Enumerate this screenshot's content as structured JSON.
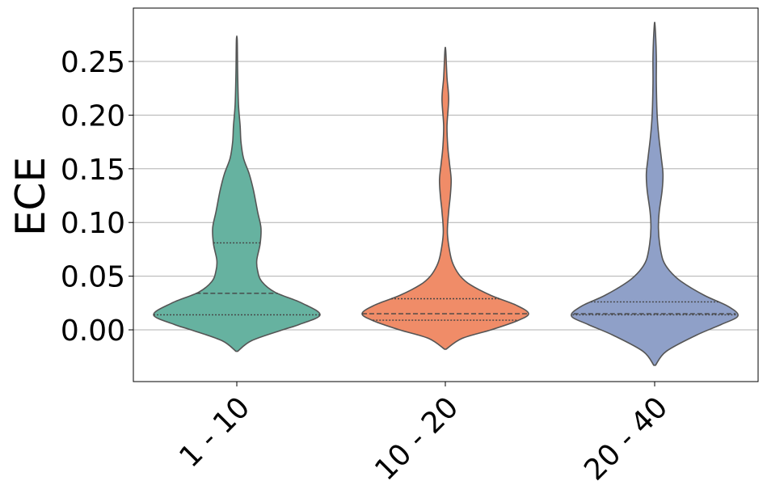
{
  "chart_data": {
    "type": "violin",
    "title": "",
    "xlabel": "",
    "ylabel": "ECE",
    "ylim": [
      -0.05,
      0.3
    ],
    "grid": "horizontal",
    "yticks": [
      "0.00",
      "0.05",
      "0.10",
      "0.15",
      "0.20",
      "0.25"
    ],
    "ytick_values": [
      0.0,
      0.05,
      0.1,
      0.15,
      0.2,
      0.25
    ],
    "categories": [
      "1 - 10",
      "10 - 20",
      "20 - 40"
    ],
    "series": [
      {
        "category": "1 - 10",
        "color": "#66b2a0",
        "min": -0.02,
        "max": 0.27,
        "q1": 0.014,
        "median": 0.034,
        "q3": 0.081,
        "density": [
          [
            -0.02,
            0.01
          ],
          [
            -0.01,
            0.18
          ],
          [
            0.0,
            0.55
          ],
          [
            0.005,
            0.75
          ],
          [
            0.014,
            1.0
          ],
          [
            0.025,
            0.78
          ],
          [
            0.035,
            0.46
          ],
          [
            0.045,
            0.3
          ],
          [
            0.055,
            0.25
          ],
          [
            0.065,
            0.24
          ],
          [
            0.08,
            0.28
          ],
          [
            0.095,
            0.29
          ],
          [
            0.11,
            0.25
          ],
          [
            0.13,
            0.2
          ],
          [
            0.145,
            0.15
          ],
          [
            0.16,
            0.08
          ],
          [
            0.175,
            0.05
          ],
          [
            0.19,
            0.04
          ],
          [
            0.21,
            0.02
          ],
          [
            0.24,
            0.01
          ],
          [
            0.27,
            0.005
          ]
        ]
      },
      {
        "category": "10 - 20",
        "color": "#f08c68",
        "min": -0.018,
        "max": 0.26,
        "q1": 0.009,
        "median": 0.015,
        "q3": 0.029,
        "density": [
          [
            -0.018,
            0.01
          ],
          [
            -0.008,
            0.2
          ],
          [
            0.0,
            0.55
          ],
          [
            0.008,
            0.85
          ],
          [
            0.015,
            1.0
          ],
          [
            0.023,
            0.85
          ],
          [
            0.032,
            0.55
          ],
          [
            0.042,
            0.3
          ],
          [
            0.05,
            0.18
          ],
          [
            0.06,
            0.1
          ],
          [
            0.07,
            0.06
          ],
          [
            0.09,
            0.025
          ],
          [
            0.11,
            0.04
          ],
          [
            0.125,
            0.06
          ],
          [
            0.14,
            0.07
          ],
          [
            0.155,
            0.05
          ],
          [
            0.17,
            0.03
          ],
          [
            0.19,
            0.02
          ],
          [
            0.215,
            0.04
          ],
          [
            0.235,
            0.02
          ],
          [
            0.26,
            0.005
          ]
        ]
      },
      {
        "category": "20 - 40",
        "color": "#8fa0c8",
        "min": -0.033,
        "max": 0.283,
        "q1": 0.014,
        "median": 0.015,
        "q3": 0.026,
        "density": [
          [
            -0.033,
            0.01
          ],
          [
            -0.02,
            0.14
          ],
          [
            -0.005,
            0.5
          ],
          [
            0.005,
            0.8
          ],
          [
            0.013,
            1.0
          ],
          [
            0.022,
            0.88
          ],
          [
            0.032,
            0.6
          ],
          [
            0.045,
            0.32
          ],
          [
            0.055,
            0.18
          ],
          [
            0.065,
            0.1
          ],
          [
            0.08,
            0.06
          ],
          [
            0.095,
            0.045
          ],
          [
            0.11,
            0.055
          ],
          [
            0.13,
            0.09
          ],
          [
            0.145,
            0.1
          ],
          [
            0.16,
            0.08
          ],
          [
            0.18,
            0.05
          ],
          [
            0.2,
            0.03
          ],
          [
            0.23,
            0.02
          ],
          [
            0.255,
            0.02
          ],
          [
            0.283,
            0.005
          ]
        ]
      }
    ]
  }
}
